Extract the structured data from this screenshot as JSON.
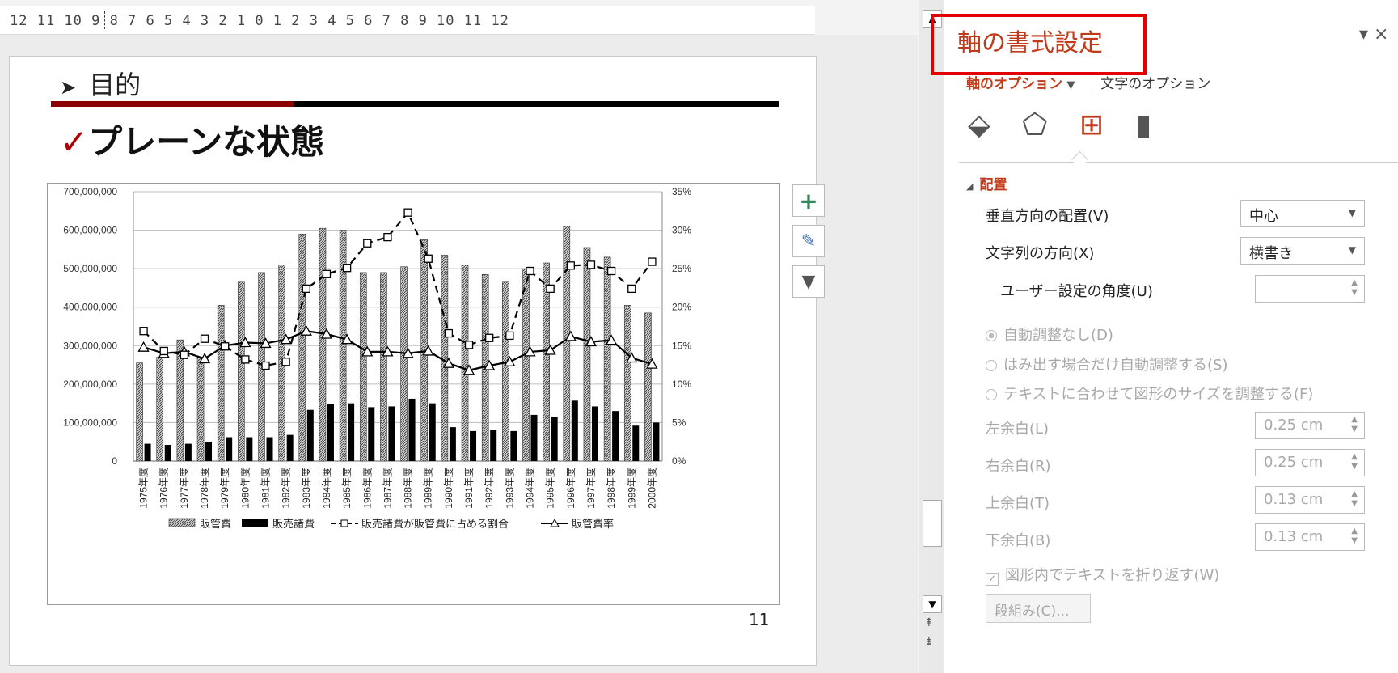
{
  "ruler": {
    "text": "12 11 10 9 8 7 6 5 4 3 2 1 0 1 2 3 4 5 6 7 8 9 10 11 12"
  },
  "slide": {
    "heading": "目的",
    "subtitle": "プレーンな状態",
    "page_number": "11"
  },
  "chart_data": {
    "type": "bar",
    "categories": [
      "1975年度",
      "1976年度",
      "1977年度",
      "1978年度",
      "1979年度",
      "1980年度",
      "1981年度",
      "1982年度",
      "1983年度",
      "1984年度",
      "1985年度",
      "1986年度",
      "1987年度",
      "1988年度",
      "1989年度",
      "1990年度",
      "1991年度",
      "1992年度",
      "1993年度",
      "1994年度",
      "1995年度",
      "1996年度",
      "1997年度",
      "1998年度",
      "1999年度",
      "2000年度"
    ],
    "series": [
      {
        "name": "販管費",
        "kind": "bar",
        "axis": "left",
        "color": "#8c8c8c",
        "values": [
          255000000,
          270000000,
          315000000,
          270000000,
          405000000,
          465000000,
          490000000,
          510000000,
          590000000,
          605000000,
          600000000,
          490000000,
          490000000,
          505000000,
          575000000,
          535000000,
          510000000,
          485000000,
          465000000,
          500000000,
          515000000,
          610000000,
          555000000,
          530000000,
          405000000,
          385000000
        ]
      },
      {
        "name": "販売諸費",
        "kind": "bar",
        "axis": "left",
        "color": "#000000",
        "values": [
          45000000,
          42000000,
          45000000,
          50000000,
          62000000,
          62000000,
          62000000,
          68000000,
          133000000,
          148000000,
          150000000,
          140000000,
          142000000,
          162000000,
          150000000,
          88000000,
          78000000,
          80000000,
          78000000,
          120000000,
          115000000,
          157000000,
          142000000,
          130000000,
          92000000,
          100000000
        ]
      },
      {
        "name": "販売諸費が販管費に占める割合",
        "kind": "line-dashed",
        "axis": "right",
        "values": [
          16.9,
          14.3,
          13.8,
          15.9,
          14.9,
          13.2,
          12.4,
          12.9,
          22.4,
          24.3,
          25.1,
          28.3,
          29.1,
          32.3,
          26.3,
          16.6,
          15.1,
          16.0,
          16.3,
          24.7,
          22.4,
          25.4,
          25.5,
          24.7,
          22.4,
          25.9
        ]
      },
      {
        "name": "販管費率",
        "kind": "line-solid",
        "axis": "right",
        "values": [
          14.8,
          14.0,
          14.2,
          13.3,
          15.0,
          15.4,
          15.3,
          15.8,
          16.9,
          16.5,
          15.8,
          14.2,
          14.2,
          14.0,
          14.3,
          12.7,
          11.8,
          12.4,
          12.9,
          14.2,
          14.4,
          16.2,
          15.5,
          15.7,
          13.4,
          12.6
        ]
      }
    ],
    "yleft": {
      "ylim": [
        0,
        700000000
      ],
      "ticks": [
        "0",
        "100,000,000",
        "200,000,000",
        "300,000,000",
        "400,000,000",
        "500,000,000",
        "600,000,000",
        "700,000,000"
      ]
    },
    "yright": {
      "ylim": [
        0,
        35
      ],
      "ticks": [
        "0%",
        "5%",
        "10%",
        "15%",
        "20%",
        "25%",
        "30%",
        "35%"
      ]
    },
    "grid": true,
    "legend_position": "bottom"
  },
  "chart_tools": {
    "add": "+",
    "style": "brush-icon",
    "filter": "filter-icon"
  },
  "pane": {
    "title": "軸の書式設定",
    "controls": "▾ ×",
    "tab_axis": "軸のオプション",
    "tab_text": "文字のオプション",
    "section": "配置",
    "vertical_label": "垂直方向の配置(V)",
    "vertical_value": "中心",
    "direction_label": "文字列の方向(X)",
    "direction_value": "横書き",
    "angle_label": "ユーザー設定の角度(U)",
    "angle_value": "",
    "radio1": "自動調整なし(D)",
    "radio2": "はみ出す場合だけ自動調整する(S)",
    "radio3": "テキストに合わせて図形のサイズを調整する(F)",
    "margin_left_label": "左余白(L)",
    "margin_left": "0.25 cm",
    "margin_right_label": "右余白(R)",
    "margin_right": "0.25 cm",
    "margin_top_label": "上余白(T)",
    "margin_top": "0.13 cm",
    "margin_bottom_label": "下余白(B)",
    "margin_bottom": "0.13 cm",
    "wrap_label": "図形内でテキストを折り返す(W)",
    "columns_button": "段組み(C)..."
  }
}
